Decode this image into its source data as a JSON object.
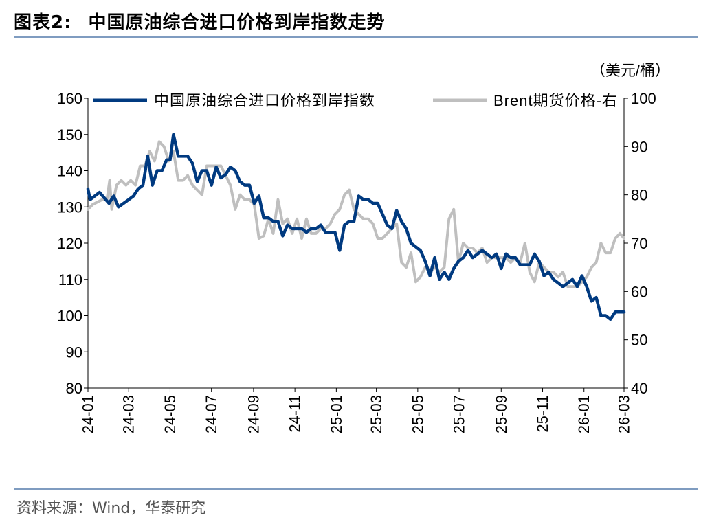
{
  "header": {
    "figure_label": "图表2:",
    "title": "中国原油综合进口价格到岸指数走势"
  },
  "source": "资料来源：Wind，华泰研究",
  "chart_data": {
    "type": "line",
    "unit_label": "（美元/桶）",
    "x_tick_labels": [
      "24-01",
      "24-03",
      "24-05",
      "24-07",
      "24-09",
      "24-11",
      "25-01",
      "25-03",
      "25-05",
      "25-07",
      "25-09",
      "25-11",
      "26-01",
      "26-03"
    ],
    "x_range": [
      "2024-01-01",
      "2026-03-01"
    ],
    "left_axis": {
      "ylim": [
        80,
        160
      ],
      "ticks": [
        80,
        90,
        100,
        110,
        120,
        130,
        140,
        150,
        160
      ]
    },
    "right_axis": {
      "ylim": [
        40,
        100
      ],
      "ticks": [
        40,
        50,
        60,
        70,
        80,
        90,
        100
      ]
    },
    "legend_position": "top",
    "grid": false,
    "series": [
      {
        "name": "中国原油综合进口价格到岸指数",
        "axis": "left",
        "color": "#003a80",
        "points": [
          [
            "2024-01-01",
            135
          ],
          [
            "2024-01-04",
            132
          ],
          [
            "2024-01-18",
            134
          ],
          [
            "2024-02-01",
            131
          ],
          [
            "2024-02-08",
            133
          ],
          [
            "2024-02-15",
            130
          ],
          [
            "2024-03-01",
            132
          ],
          [
            "2024-03-08",
            133
          ],
          [
            "2024-03-15",
            135
          ],
          [
            "2024-03-22",
            136
          ],
          [
            "2024-03-29",
            144
          ],
          [
            "2024-04-05",
            136
          ],
          [
            "2024-04-12",
            140
          ],
          [
            "2024-04-19",
            140
          ],
          [
            "2024-04-26",
            143
          ],
          [
            "2024-05-01",
            143
          ],
          [
            "2024-05-06",
            150
          ],
          [
            "2024-05-13",
            144
          ],
          [
            "2024-05-20",
            144
          ],
          [
            "2024-05-27",
            144
          ],
          [
            "2024-06-03",
            142
          ],
          [
            "2024-06-10",
            137
          ],
          [
            "2024-06-17",
            140
          ],
          [
            "2024-06-24",
            140
          ],
          [
            "2024-07-01",
            136
          ],
          [
            "2024-07-08",
            141
          ],
          [
            "2024-07-15",
            138
          ],
          [
            "2024-07-22",
            139
          ],
          [
            "2024-07-29",
            141
          ],
          [
            "2024-08-05",
            140
          ],
          [
            "2024-08-12",
            137
          ],
          [
            "2024-08-19",
            136
          ],
          [
            "2024-08-26",
            136
          ],
          [
            "2024-09-02",
            131
          ],
          [
            "2024-09-09",
            133
          ],
          [
            "2024-09-16",
            127
          ],
          [
            "2024-09-23",
            127
          ],
          [
            "2024-09-30",
            126
          ],
          [
            "2024-10-07",
            126
          ],
          [
            "2024-10-14",
            122
          ],
          [
            "2024-10-21",
            125
          ],
          [
            "2024-10-28",
            124
          ],
          [
            "2024-11-04",
            124
          ],
          [
            "2024-11-11",
            124
          ],
          [
            "2024-11-18",
            123
          ],
          [
            "2024-11-25",
            124
          ],
          [
            "2024-12-02",
            124
          ],
          [
            "2024-12-09",
            125
          ],
          [
            "2024-12-16",
            123
          ],
          [
            "2024-12-23",
            123
          ],
          [
            "2024-12-30",
            123
          ],
          [
            "2025-01-06",
            118
          ],
          [
            "2025-01-13",
            125
          ],
          [
            "2025-01-20",
            126
          ],
          [
            "2025-01-27",
            126
          ],
          [
            "2025-02-03",
            133
          ],
          [
            "2025-02-10",
            132
          ],
          [
            "2025-02-17",
            132
          ],
          [
            "2025-02-24",
            131
          ],
          [
            "2025-03-03",
            131
          ],
          [
            "2025-03-10",
            128
          ],
          [
            "2025-03-17",
            125
          ],
          [
            "2025-03-24",
            124
          ],
          [
            "2025-03-31",
            129
          ],
          [
            "2025-04-07",
            126
          ],
          [
            "2025-04-14",
            124
          ],
          [
            "2025-04-21",
            120
          ],
          [
            "2025-04-28",
            119
          ],
          [
            "2025-05-05",
            118
          ],
          [
            "2025-05-12",
            115
          ],
          [
            "2025-05-19",
            111
          ],
          [
            "2025-05-26",
            116
          ],
          [
            "2025-06-02",
            110
          ],
          [
            "2025-06-09",
            112
          ],
          [
            "2025-06-16",
            110
          ],
          [
            "2025-06-23",
            113
          ],
          [
            "2025-06-30",
            115
          ],
          [
            "2025-07-07",
            116
          ],
          [
            "2025-07-14",
            118
          ],
          [
            "2025-07-21",
            116
          ],
          [
            "2025-07-28",
            117
          ],
          [
            "2025-08-04",
            118
          ],
          [
            "2025-08-11",
            117
          ],
          [
            "2025-08-18",
            116
          ],
          [
            "2025-08-25",
            117
          ],
          [
            "2025-09-01",
            113
          ],
          [
            "2025-09-08",
            117
          ],
          [
            "2025-09-15",
            116
          ],
          [
            "2025-09-22",
            116
          ],
          [
            "2025-09-29",
            114
          ],
          [
            "2025-10-06",
            114
          ],
          [
            "2025-10-13",
            114
          ],
          [
            "2025-10-20",
            117
          ],
          [
            "2025-10-27",
            115
          ],
          [
            "2025-11-03",
            111
          ],
          [
            "2025-11-10",
            112
          ],
          [
            "2025-11-17",
            110
          ],
          [
            "2025-11-24",
            109
          ],
          [
            "2025-12-01",
            108
          ],
          [
            "2025-12-08",
            109
          ],
          [
            "2025-12-15",
            110
          ],
          [
            "2025-12-22",
            108
          ],
          [
            "2025-12-29",
            111
          ],
          [
            "2026-01-05",
            108
          ],
          [
            "2026-01-12",
            104
          ],
          [
            "2026-01-19",
            105
          ],
          [
            "2026-01-26",
            100
          ],
          [
            "2026-02-02",
            100
          ],
          [
            "2026-02-09",
            99
          ],
          [
            "2026-02-16",
            101
          ],
          [
            "2026-02-23",
            101
          ],
          [
            "2026-03-01",
            101
          ]
        ]
      },
      {
        "name": "Brent期货价格-右",
        "axis": "right",
        "color": "#bfbfbf",
        "points": [
          [
            "2024-01-01",
            77
          ],
          [
            "2024-01-08",
            78
          ],
          [
            "2024-01-15",
            78.5
          ],
          [
            "2024-01-22",
            79
          ],
          [
            "2024-01-29",
            79
          ],
          [
            "2024-02-02",
            83
          ],
          [
            "2024-02-05",
            77
          ],
          [
            "2024-02-12",
            82
          ],
          [
            "2024-02-19",
            83
          ],
          [
            "2024-02-26",
            82
          ],
          [
            "2024-03-04",
            83
          ],
          [
            "2024-03-11",
            82
          ],
          [
            "2024-03-18",
            86
          ],
          [
            "2024-03-25",
            86
          ],
          [
            "2024-04-01",
            89
          ],
          [
            "2024-04-08",
            87
          ],
          [
            "2024-04-15",
            91
          ],
          [
            "2024-04-22",
            90
          ],
          [
            "2024-04-29",
            87
          ],
          [
            "2024-05-06",
            89
          ],
          [
            "2024-05-13",
            83
          ],
          [
            "2024-05-20",
            83
          ],
          [
            "2024-05-27",
            84
          ],
          [
            "2024-06-03",
            82
          ],
          [
            "2024-06-10",
            81
          ],
          [
            "2024-06-17",
            80
          ],
          [
            "2024-06-24",
            86
          ],
          [
            "2024-07-01",
            86
          ],
          [
            "2024-07-08",
            86
          ],
          [
            "2024-07-15",
            86
          ],
          [
            "2024-07-22",
            84
          ],
          [
            "2024-07-29",
            82
          ],
          [
            "2024-08-05",
            77
          ],
          [
            "2024-08-12",
            80
          ],
          [
            "2024-08-19",
            79
          ],
          [
            "2024-08-26",
            79
          ],
          [
            "2024-09-02",
            78
          ],
          [
            "2024-09-09",
            71
          ],
          [
            "2024-09-16",
            71.5
          ],
          [
            "2024-09-23",
            75
          ],
          [
            "2024-09-30",
            72
          ],
          [
            "2024-10-07",
            79
          ],
          [
            "2024-10-14",
            74
          ],
          [
            "2024-10-21",
            75
          ],
          [
            "2024-10-28",
            72
          ],
          [
            "2024-11-04",
            75
          ],
          [
            "2024-11-11",
            71
          ],
          [
            "2024-11-18",
            75
          ],
          [
            "2024-11-25",
            72
          ],
          [
            "2024-12-02",
            72
          ],
          [
            "2024-12-09",
            73
          ],
          [
            "2024-12-16",
            73
          ],
          [
            "2024-12-23",
            74
          ],
          [
            "2024-12-30",
            76
          ],
          [
            "2025-01-06",
            77
          ],
          [
            "2025-01-13",
            80
          ],
          [
            "2025-01-20",
            81
          ],
          [
            "2025-01-27",
            77
          ],
          [
            "2025-02-03",
            76
          ],
          [
            "2025-02-10",
            75
          ],
          [
            "2025-02-17",
            75
          ],
          [
            "2025-02-24",
            74
          ],
          [
            "2025-03-03",
            71
          ],
          [
            "2025-03-10",
            71
          ],
          [
            "2025-03-17",
            72
          ],
          [
            "2025-03-24",
            73
          ],
          [
            "2025-03-31",
            74
          ],
          [
            "2025-04-07",
            66
          ],
          [
            "2025-04-14",
            65
          ],
          [
            "2025-04-21",
            68
          ],
          [
            "2025-04-28",
            62
          ],
          [
            "2025-05-05",
            63
          ],
          [
            "2025-05-12",
            65
          ],
          [
            "2025-05-19",
            64
          ],
          [
            "2025-05-26",
            65
          ],
          [
            "2025-06-02",
            64
          ],
          [
            "2025-06-09",
            65
          ],
          [
            "2025-06-16",
            75
          ],
          [
            "2025-06-23",
            77
          ],
          [
            "2025-06-30",
            66
          ],
          [
            "2025-07-07",
            70
          ],
          [
            "2025-07-14",
            69
          ],
          [
            "2025-07-21",
            69
          ],
          [
            "2025-07-28",
            68
          ],
          [
            "2025-08-04",
            69
          ],
          [
            "2025-08-11",
            66
          ],
          [
            "2025-08-18",
            67
          ],
          [
            "2025-08-25",
            67
          ],
          [
            "2025-09-01",
            67
          ],
          [
            "2025-09-08",
            67
          ],
          [
            "2025-09-15",
            66
          ],
          [
            "2025-09-22",
            67
          ],
          [
            "2025-09-29",
            66
          ],
          [
            "2025-10-06",
            70
          ],
          [
            "2025-10-13",
            64
          ],
          [
            "2025-10-20",
            62
          ],
          [
            "2025-10-27",
            66
          ],
          [
            "2025-11-03",
            65
          ],
          [
            "2025-11-10",
            64
          ],
          [
            "2025-11-17",
            64
          ],
          [
            "2025-11-24",
            63
          ],
          [
            "2025-12-01",
            64
          ],
          [
            "2025-12-08",
            61
          ],
          [
            "2025-12-15",
            61
          ],
          [
            "2025-12-22",
            61
          ],
          [
            "2025-12-29",
            62
          ],
          [
            "2026-01-05",
            63
          ],
          [
            "2026-01-12",
            65
          ],
          [
            "2026-01-19",
            66
          ],
          [
            "2026-01-26",
            70
          ],
          [
            "2026-02-02",
            68
          ],
          [
            "2026-02-09",
            68
          ],
          [
            "2026-02-16",
            71
          ],
          [
            "2026-02-23",
            72
          ],
          [
            "2026-03-01",
            71
          ]
        ]
      }
    ]
  }
}
